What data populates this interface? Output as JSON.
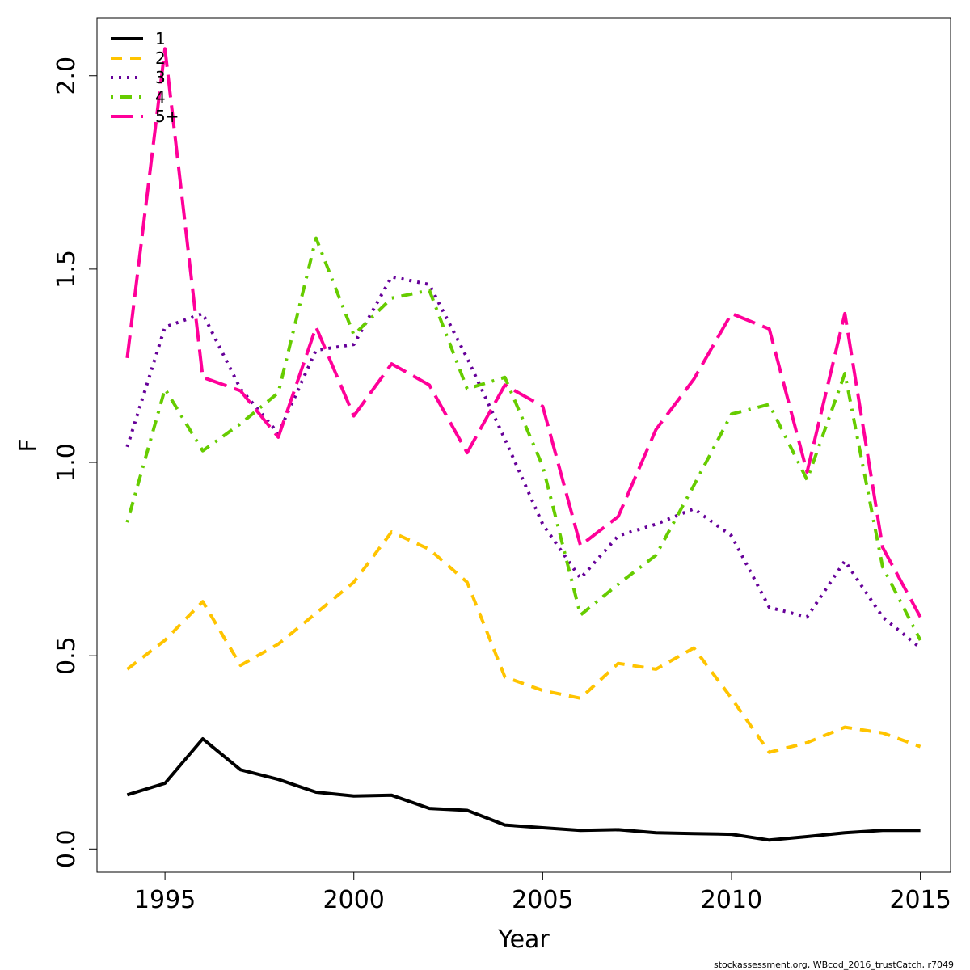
{
  "chart_data": {
    "type": "line",
    "xlabel": "Year",
    "ylabel": "F",
    "xlim": [
      1993.2,
      2015.8
    ],
    "ylim": [
      -0.06,
      2.15
    ],
    "xticks": [
      1995,
      2000,
      2005,
      2010,
      2015
    ],
    "yticks": [
      0.0,
      0.5,
      1.0,
      1.5,
      2.0
    ],
    "ytick_labels": [
      "0.0",
      "0.5",
      "1.0",
      "1.5",
      "2.0"
    ],
    "legend_position": "top-left",
    "x": [
      1994,
      1995,
      1996,
      1997,
      1998,
      1999,
      2000,
      2001,
      2002,
      2003,
      2004,
      2005,
      2006,
      2007,
      2008,
      2009,
      2010,
      2011,
      2012,
      2013,
      2014,
      2015
    ],
    "series": [
      {
        "name": "1",
        "color": "#000000",
        "dash": "solid",
        "values": [
          0.14,
          0.17,
          0.285,
          0.205,
          0.18,
          0.147,
          0.137,
          0.139,
          0.105,
          0.1,
          0.062,
          0.055,
          0.048,
          0.05,
          0.042,
          0.04,
          0.038,
          0.023,
          0.032,
          0.042,
          0.048,
          0.048
        ]
      },
      {
        "name": "2",
        "color": "#FFC400",
        "dash": "dashed",
        "values": [
          0.465,
          0.54,
          0.64,
          0.475,
          0.53,
          0.61,
          0.69,
          0.82,
          0.775,
          0.69,
          0.445,
          0.41,
          0.39,
          0.48,
          0.465,
          0.52,
          0.39,
          0.25,
          0.275,
          0.315,
          0.3,
          0.265
        ]
      },
      {
        "name": "3",
        "color": "#660099",
        "dash": "dotted",
        "values": [
          1.04,
          1.35,
          1.385,
          1.19,
          1.075,
          1.29,
          1.305,
          1.48,
          1.46,
          1.27,
          1.06,
          0.84,
          0.7,
          0.81,
          0.84,
          0.88,
          0.81,
          0.625,
          0.6,
          0.745,
          0.6,
          0.52
        ]
      },
      {
        "name": "4",
        "color": "#66CC00",
        "dash": "dotdash",
        "values": [
          0.845,
          1.19,
          1.03,
          1.1,
          1.18,
          1.58,
          1.33,
          1.425,
          1.445,
          1.19,
          1.22,
          0.99,
          0.605,
          0.685,
          0.76,
          0.94,
          1.125,
          1.15,
          0.955,
          1.23,
          0.73,
          0.54
        ]
      },
      {
        "name": "5+",
        "color": "#FF0099",
        "dash": "longdash",
        "values": [
          1.27,
          2.07,
          1.22,
          1.185,
          1.065,
          1.35,
          1.12,
          1.255,
          1.2,
          1.025,
          1.2,
          1.145,
          0.785,
          0.86,
          1.085,
          1.215,
          1.385,
          1.345,
          0.975,
          1.385,
          0.78,
          0.6
        ]
      }
    ]
  },
  "footer": "stockassessment.org, WBcod_2016_trustCatch, r7049"
}
